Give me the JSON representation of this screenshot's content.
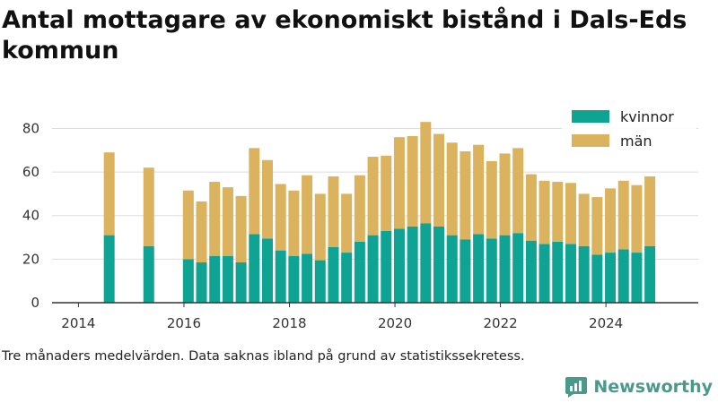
{
  "title": "Antal mottagare av ekonomiskt bistånd i Dals-Eds kommun",
  "footnote": "Tre månaders medelvärden. Data saknas ibland på grund av statistikssekretess.",
  "brand": {
    "name": "Newsworthy",
    "icon": "newsworthy-logo-icon"
  },
  "colors": {
    "kvinnor": "#0fa394",
    "man": "#dbb25e",
    "grid": "#dddddd",
    "axis": "#333333"
  },
  "chart_data": {
    "type": "bar",
    "stacked": true,
    "title": "Antal mottagare av ekonomiskt bistånd i Dals-Eds kommun",
    "xlabel": "",
    "ylabel": "",
    "ylim": [
      0,
      88
    ],
    "yticks": [
      0,
      20,
      40,
      60,
      80
    ],
    "xlim": [
      "2013-07",
      "2025-10"
    ],
    "xticks": [
      "2014",
      "2016",
      "2018",
      "2020",
      "2022",
      "2024"
    ],
    "grid": true,
    "legend": "top-right",
    "x": [
      "2014-08",
      "2015-05",
      "2016-02",
      "2016-05",
      "2016-08",
      "2016-11",
      "2017-02",
      "2017-05",
      "2017-08",
      "2017-11",
      "2018-02",
      "2018-05",
      "2018-08",
      "2018-11",
      "2019-02",
      "2019-05",
      "2019-08",
      "2019-11",
      "2020-02",
      "2020-05",
      "2020-08",
      "2020-11",
      "2021-02",
      "2021-05",
      "2021-08",
      "2021-11",
      "2022-02",
      "2022-05",
      "2022-08",
      "2022-11",
      "2023-02",
      "2023-05",
      "2023-08",
      "2023-11",
      "2024-02",
      "2024-05",
      "2024-08",
      "2024-11"
    ],
    "series": [
      {
        "name": "kvinnor",
        "values": [
          31,
          26,
          20,
          18.5,
          21.5,
          21.5,
          18.5,
          31.5,
          29.5,
          24,
          21.5,
          22.5,
          19.5,
          25.5,
          23,
          28,
          31,
          33,
          34,
          35,
          36.5,
          35,
          31,
          29,
          31.5,
          29.5,
          31,
          32,
          28.5,
          27,
          28,
          27,
          26,
          22,
          23,
          24.5,
          23,
          26
        ]
      },
      {
        "name": "män",
        "values": [
          38,
          36,
          31.5,
          28,
          34,
          31.5,
          30.5,
          39.5,
          36,
          30.5,
          30,
          36,
          30.5,
          32.5,
          27,
          30.5,
          36,
          34.5,
          42,
          41.5,
          46.5,
          42.5,
          42.5,
          40.5,
          41,
          35.5,
          37.5,
          39,
          30.5,
          29,
          27.5,
          28,
          24,
          26.5,
          29.5,
          31.5,
          31,
          32
        ]
      }
    ]
  }
}
